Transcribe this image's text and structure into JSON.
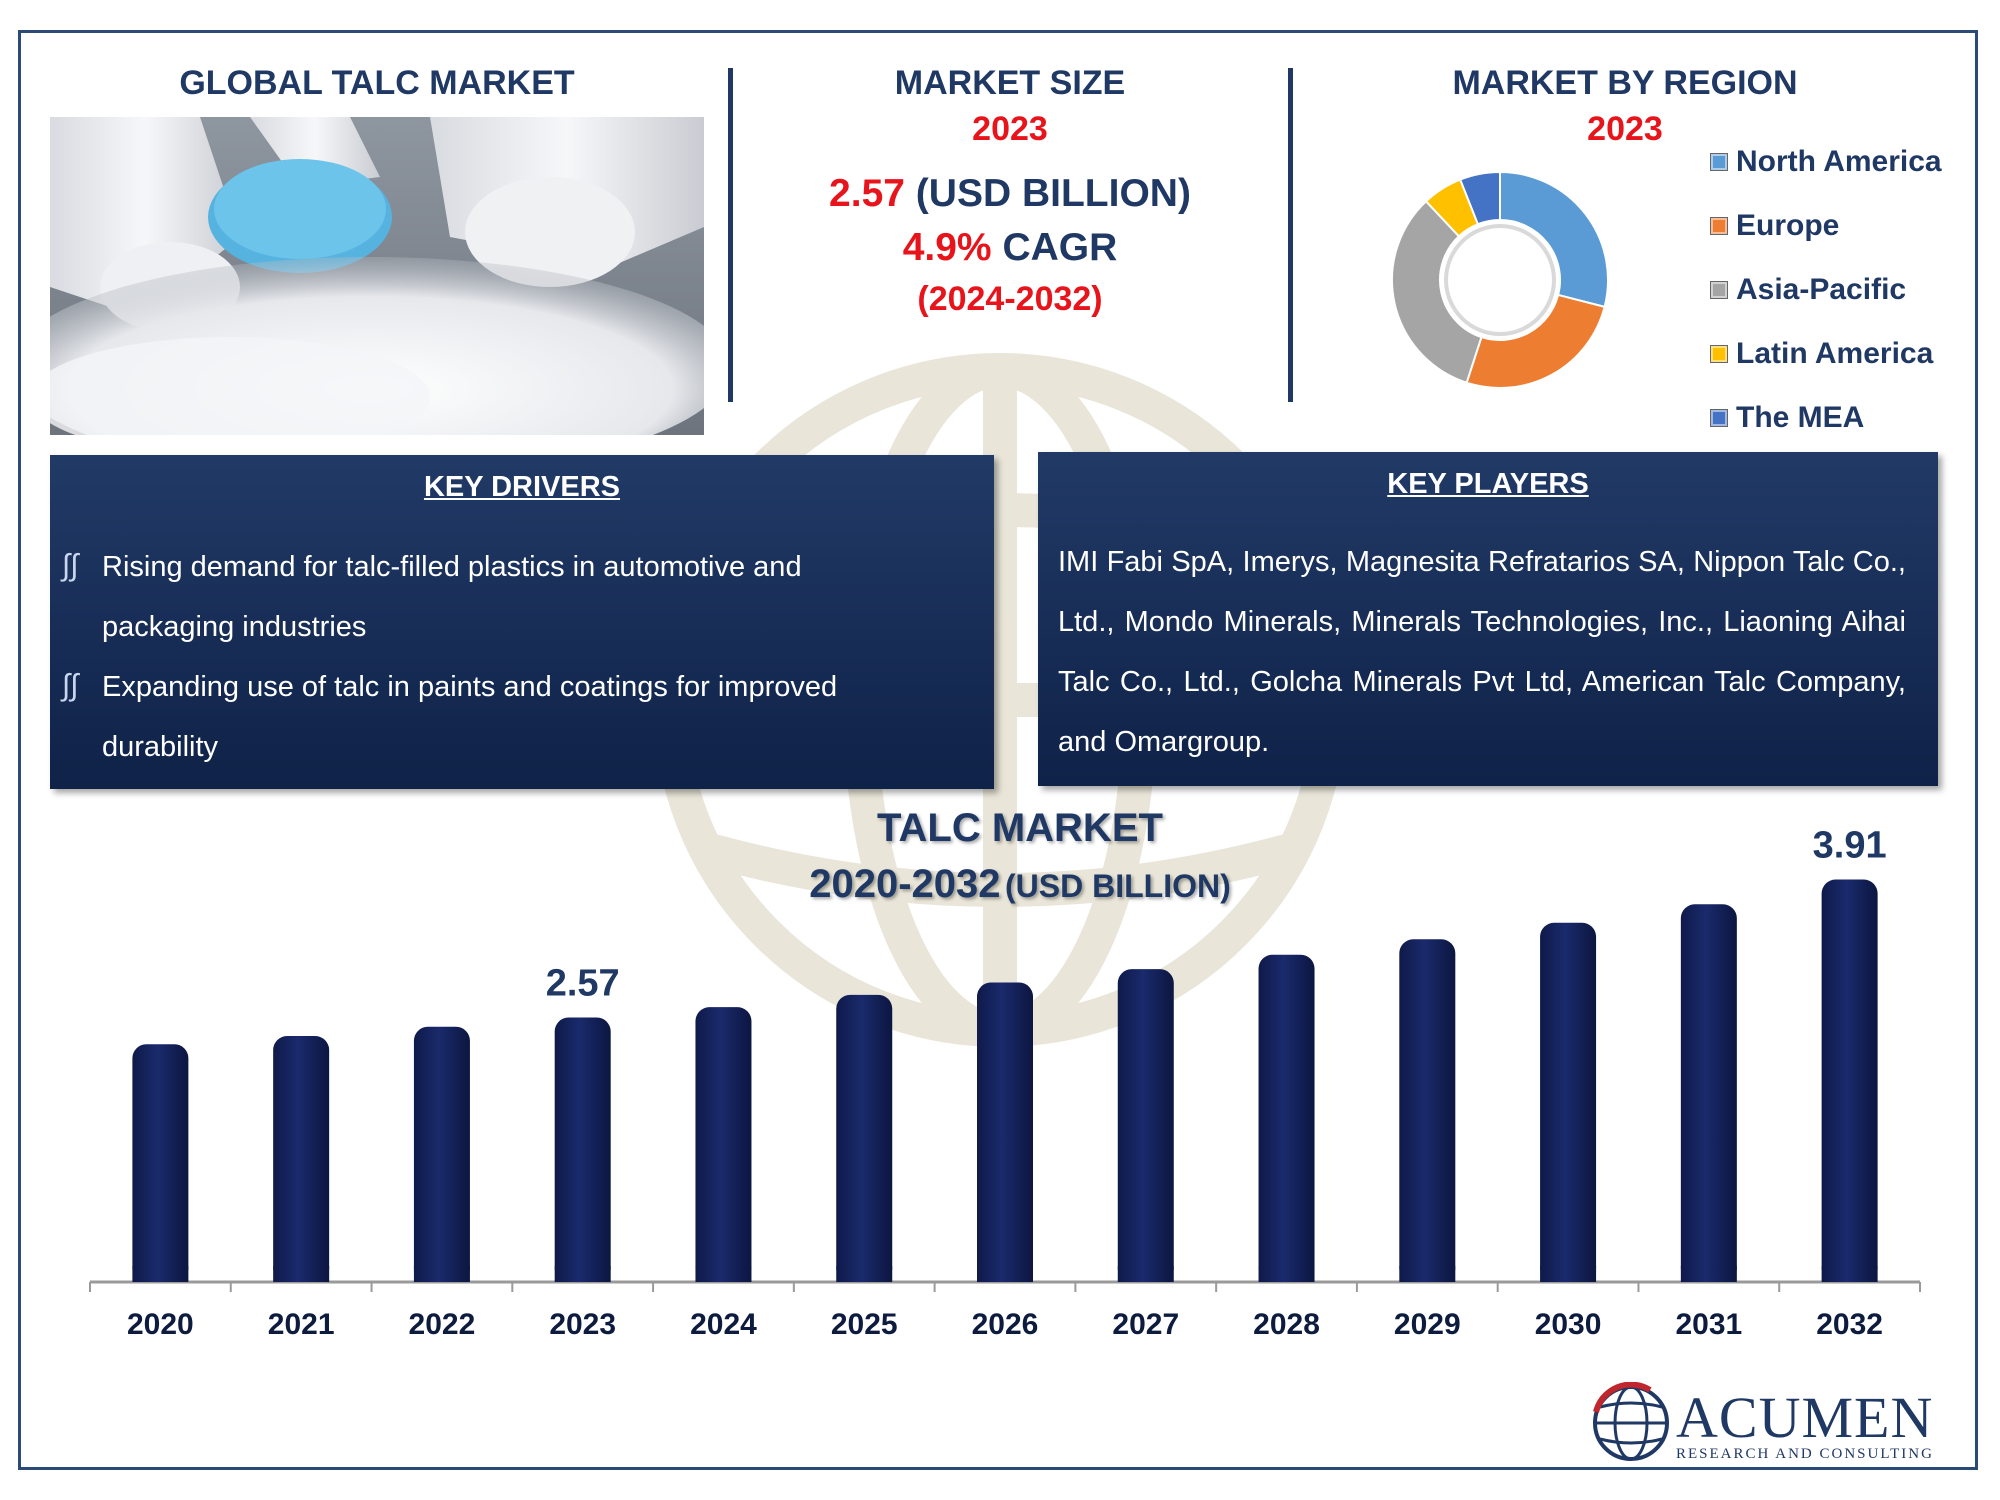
{
  "header": {
    "left_title": "GLOBAL TALC  MARKET",
    "size_title": "MARKET SIZE",
    "size_year": "2023",
    "size_value": "2.57",
    "size_unit": "(USD BILLION)",
    "cagr_value": "4.9%",
    "cagr_label": "CAGR",
    "cagr_period": "(2024-2032)",
    "region_title": "MARKET BY REGION",
    "region_year": "2023"
  },
  "regions": [
    {
      "name": "North America",
      "share": 29,
      "color": "#5b9bd5"
    },
    {
      "name": "Europe",
      "share": 26,
      "color": "#ed7d31"
    },
    {
      "name": "Asia-Pacific",
      "share": 33,
      "color": "#a5a5a5"
    },
    {
      "name": "Latin America",
      "share": 6,
      "color": "#ffc000"
    },
    {
      "name": "The MEA",
      "share": 6,
      "color": "#4472c4"
    }
  ],
  "drivers": {
    "title": "KEY DRIVERS",
    "bullet_icon": "chart-bullet-icon",
    "items": [
      {
        "line1": "Rising demand for talc-filled plastics in automotive and",
        "line2": "packaging industries"
      },
      {
        "line1": "Expanding use of talc in paints and coatings for improved",
        "line2": "durability"
      }
    ]
  },
  "players": {
    "title": "KEY PLAYERS",
    "text": "IMI Fabi SpA, Imerys, Magnesita Refratarios SA, Nippon Talc Co., Ltd., Mondo Minerals, Minerals Technologies, Inc., Liaoning Aihai Talc Co., Ltd., Golcha Minerals Pvt Ltd, American Talc Company, and Omargroup."
  },
  "chart_data": {
    "type": "bar",
    "title": "TALC MARKET",
    "subtitle_years": "2020-2032",
    "subtitle_unit": "(USD BILLION)",
    "categories": [
      "2020",
      "2021",
      "2022",
      "2023",
      "2024",
      "2025",
      "2026",
      "2027",
      "2028",
      "2029",
      "2030",
      "2031",
      "2032"
    ],
    "values": [
      2.31,
      2.39,
      2.48,
      2.57,
      2.67,
      2.79,
      2.91,
      3.04,
      3.18,
      3.33,
      3.49,
      3.67,
      3.91
    ],
    "data_labels": {
      "3": "2.57",
      "12": "3.91"
    },
    "ylim": [
      0,
      4.1
    ],
    "bar_color": "#1a2a6c",
    "grid": false
  },
  "logo": {
    "name": "ACUMEN",
    "tagline": "RESEARCH AND CONSULTING"
  }
}
